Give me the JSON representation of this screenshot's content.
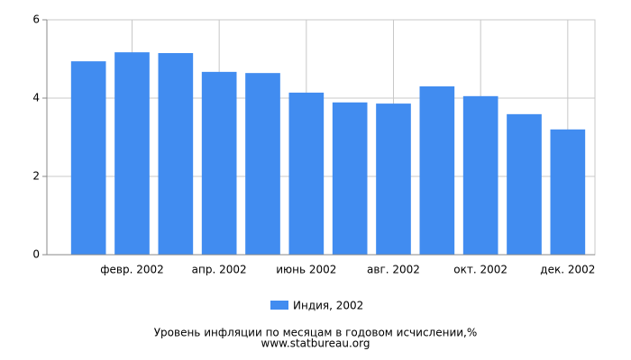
{
  "chart_data": {
    "type": "bar",
    "categories": [
      null,
      "февр. 2002",
      null,
      "апр. 2002",
      null,
      "июнь 2002",
      null,
      "авг. 2002",
      null,
      "окт. 2002",
      null,
      "дек. 2002"
    ],
    "series": [
      {
        "name": "Индия, 2002",
        "color": "#418cf0",
        "values": [
          4.94,
          5.17,
          5.15,
          4.67,
          4.64,
          4.14,
          3.89,
          3.86,
          4.3,
          4.05,
          3.59,
          3.2
        ]
      }
    ],
    "ylim": [
      0,
      6
    ],
    "yticks": [
      0,
      2,
      4,
      6
    ],
    "grid": true,
    "title": "Уровень инфляции по месяцам в годовом исчислении,%",
    "source": "www.statbureau.org"
  }
}
